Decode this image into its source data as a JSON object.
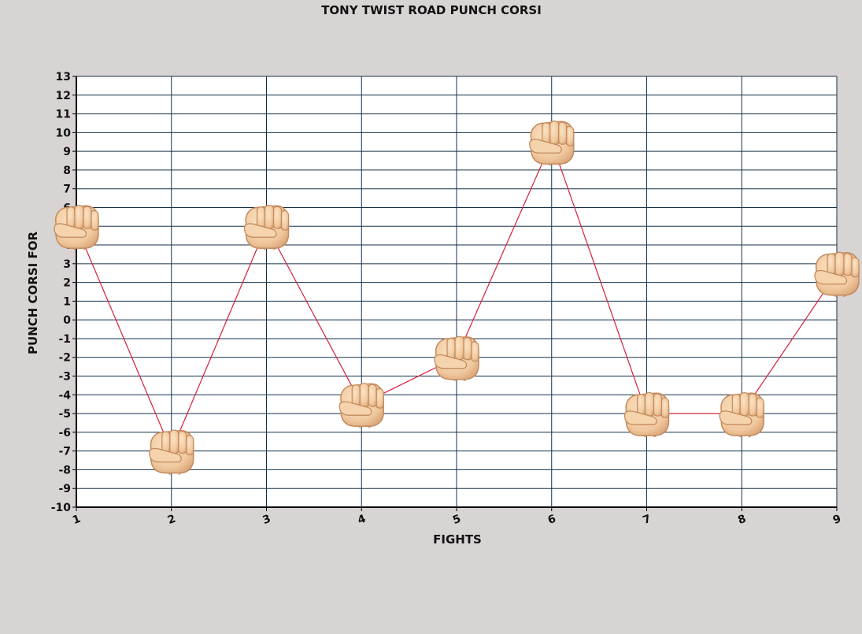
{
  "chart_data": {
    "type": "line",
    "title": "TONY TWIST ROAD PUNCH CORSI",
    "xlabel": "FIGHTS",
    "ylabel": "PUNCH CORSI FOR",
    "x": [
      1,
      2,
      3,
      4,
      5,
      6,
      7,
      8,
      9
    ],
    "x_tick_labels": [
      "1",
      "2",
      "3",
      "4",
      "5",
      "6",
      "7",
      "8",
      "9"
    ],
    "y_tick_labels": [
      "-10",
      "-9",
      "-8",
      "-7",
      "-6",
      "-5",
      "-4",
      "-3",
      "-2",
      "-1",
      "0",
      "1",
      "2",
      "3",
      "4",
      "5",
      "6",
      "7",
      "8",
      "9",
      "10",
      "11",
      "12",
      "13"
    ],
    "series": [
      {
        "values": [
          5,
          -7,
          5,
          -4.5,
          -2,
          9.5,
          -5,
          -5,
          2.5
        ]
      }
    ],
    "xlim": [
      1,
      9
    ],
    "ylim": [
      -10,
      13
    ],
    "grid": true,
    "legend": "none",
    "marker_icon": "fist-icon",
    "colors": {
      "background": "#d8d4d3",
      "plot_background": "#ffffff",
      "grid": "#16324a",
      "line": "#d4203a",
      "text": "#111111"
    }
  }
}
